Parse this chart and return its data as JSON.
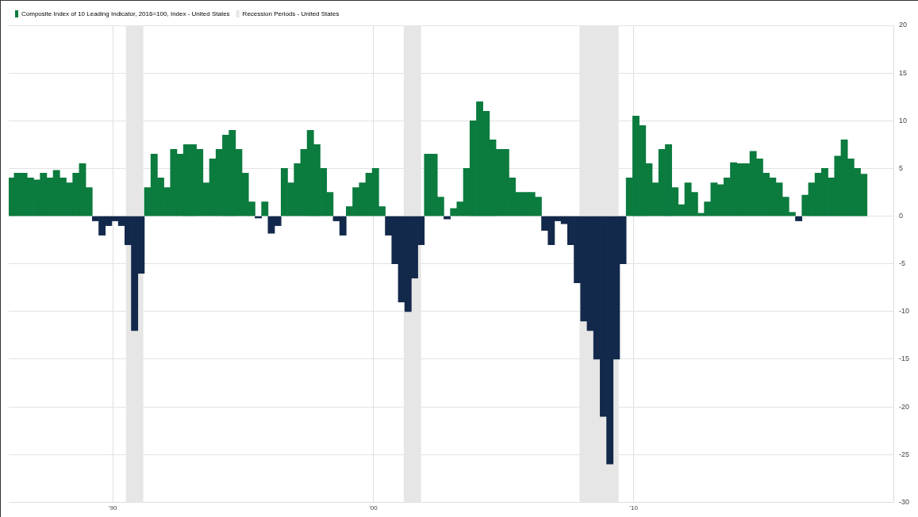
{
  "chart_data": {
    "type": "bar",
    "x": [
      "1986-02",
      "1986-05",
      "1986-08",
      "1986-11",
      "1987-02",
      "1987-05",
      "1987-08",
      "1987-11",
      "1988-02",
      "1988-05",
      "1988-08",
      "1988-11",
      "1989-02",
      "1989-05",
      "1989-08",
      "1989-11",
      "1990-02",
      "1990-05",
      "1990-08",
      "1990-11",
      "1991-02",
      "1991-05",
      "1991-08",
      "1991-11",
      "1992-02",
      "1992-05",
      "1992-08",
      "1992-11",
      "1993-02",
      "1993-05",
      "1993-08",
      "1993-11",
      "1994-02",
      "1994-05",
      "1994-08",
      "1994-11",
      "1995-02",
      "1995-05",
      "1995-08",
      "1995-11",
      "1996-02",
      "1996-05",
      "1996-08",
      "1996-11",
      "1997-02",
      "1997-05",
      "1997-08",
      "1997-11",
      "1998-02",
      "1998-05",
      "1998-08",
      "1998-11",
      "1999-02",
      "1999-05",
      "1999-08",
      "1999-11",
      "2000-02",
      "2000-05",
      "2000-08",
      "2000-11",
      "2001-02",
      "2001-05",
      "2001-08",
      "2001-11",
      "2002-02",
      "2002-05",
      "2002-08",
      "2002-11",
      "2003-02",
      "2003-05",
      "2003-08",
      "2003-11",
      "2004-02",
      "2004-05",
      "2004-08",
      "2004-11",
      "2005-02",
      "2005-05",
      "2005-08",
      "2005-11",
      "2006-02",
      "2006-05",
      "2006-08",
      "2006-11",
      "2007-02",
      "2007-05",
      "2007-08",
      "2007-11",
      "2008-02",
      "2008-05",
      "2008-08",
      "2008-11",
      "2009-02",
      "2009-05",
      "2009-08",
      "2009-11",
      "2010-02",
      "2010-05",
      "2010-08",
      "2010-11",
      "2011-02",
      "2011-05",
      "2011-08",
      "2011-11",
      "2012-02",
      "2012-05",
      "2012-08",
      "2012-11",
      "2013-02",
      "2013-05",
      "2013-08",
      "2013-11",
      "2014-02",
      "2014-05",
      "2014-08",
      "2014-11",
      "2015-02",
      "2015-05",
      "2015-08",
      "2015-11",
      "2016-02",
      "2016-05",
      "2016-08",
      "2016-11",
      "2017-02",
      "2017-05",
      "2017-08",
      "2017-11",
      "2018-02",
      "2018-05",
      "2018-08",
      "2018-11"
    ],
    "series": [
      {
        "name": "Composite Index of 10 Leading Indicator, 2016=100, Index - United States",
        "color": "#0b7b3e",
        "values": [
          4,
          4.5,
          4.5,
          4,
          3.8,
          4.5,
          4,
          4.8,
          4,
          3.5,
          4.5,
          5.5,
          3,
          -0.5,
          -2,
          -1,
          -0.5,
          -1,
          -3,
          -12,
          -6,
          3,
          6.5,
          4,
          3,
          7,
          6.5,
          7.5,
          7.5,
          7,
          3.5,
          6,
          7,
          8.5,
          9,
          7,
          4.5,
          1.5,
          -0.2,
          1.5,
          -1.8,
          -1,
          5,
          3.5,
          5.5,
          7,
          9,
          7.5,
          5,
          2.5,
          -0.5,
          -2,
          1,
          3,
          3.5,
          4.5,
          5,
          1,
          -2,
          -5,
          -9,
          -10,
          -6.5,
          -3,
          6.5,
          6.5,
          2,
          -0.3,
          0.8,
          1.5,
          5,
          10,
          12,
          11,
          8,
          7,
          7,
          4,
          2.5,
          2.5,
          2.5,
          2,
          -1.5,
          -3,
          -0.5,
          -0.8,
          -3,
          -7,
          -11,
          -12,
          -15,
          -21,
          -26,
          -15,
          -5,
          4,
          10.5,
          9.5,
          5.5,
          3.5,
          7,
          7.5,
          3,
          1.2,
          3.5,
          2.5,
          0.3,
          1.5,
          3.5,
          3.3,
          4,
          5.6,
          5.5,
          5.5,
          6.8,
          6,
          4.5,
          4,
          3.5,
          2,
          0.4,
          -0.5,
          2.2,
          3.5,
          4.5,
          5,
          4,
          6.3,
          8,
          6,
          5,
          4.4
        ],
        "colors": [
          "#0b7b3e",
          "#0b7b3e",
          "#0b7b3e",
          "#0b7b3e",
          "#0b7b3e",
          "#0b7b3e",
          "#0b7b3e",
          "#0b7b3e",
          "#0b7b3e",
          "#0b7b3e",
          "#0b7b3e",
          "#0b7b3e",
          "#0b7b3e",
          "#13294b",
          "#13294b",
          "#13294b",
          "#13294b",
          "#13294b",
          "#13294b",
          "#13294b",
          "#13294b",
          "#0b7b3e",
          "#0b7b3e",
          "#0b7b3e",
          "#0b7b3e",
          "#0b7b3e",
          "#0b7b3e",
          "#0b7b3e",
          "#0b7b3e",
          "#0b7b3e",
          "#0b7b3e",
          "#0b7b3e",
          "#0b7b3e",
          "#0b7b3e",
          "#0b7b3e",
          "#0b7b3e",
          "#0b7b3e",
          "#0b7b3e",
          "#13294b",
          "#0b7b3e",
          "#13294b",
          "#13294b",
          "#0b7b3e",
          "#0b7b3e",
          "#0b7b3e",
          "#0b7b3e",
          "#0b7b3e",
          "#0b7b3e",
          "#0b7b3e",
          "#0b7b3e",
          "#13294b",
          "#13294b",
          "#0b7b3e",
          "#0b7b3e",
          "#0b7b3e",
          "#0b7b3e",
          "#0b7b3e",
          "#0b7b3e",
          "#13294b",
          "#13294b",
          "#13294b",
          "#13294b",
          "#13294b",
          "#13294b",
          "#0b7b3e",
          "#0b7b3e",
          "#0b7b3e",
          "#13294b",
          "#0b7b3e",
          "#0b7b3e",
          "#0b7b3e",
          "#0b7b3e",
          "#0b7b3e",
          "#0b7b3e",
          "#0b7b3e",
          "#0b7b3e",
          "#0b7b3e",
          "#0b7b3e",
          "#0b7b3e",
          "#0b7b3e",
          "#0b7b3e",
          "#0b7b3e",
          "#13294b",
          "#13294b",
          "#13294b",
          "#13294b",
          "#13294b",
          "#13294b",
          "#13294b",
          "#13294b",
          "#13294b",
          "#13294b",
          "#13294b",
          "#13294b",
          "#13294b",
          "#0b7b3e",
          "#0b7b3e",
          "#0b7b3e",
          "#0b7b3e",
          "#0b7b3e",
          "#0b7b3e",
          "#0b7b3e",
          "#0b7b3e",
          "#0b7b3e",
          "#0b7b3e",
          "#0b7b3e",
          "#0b7b3e",
          "#0b7b3e",
          "#0b7b3e",
          "#0b7b3e",
          "#0b7b3e",
          "#0b7b3e",
          "#0b7b3e",
          "#0b7b3e",
          "#0b7b3e",
          "#0b7b3e",
          "#0b7b3e",
          "#0b7b3e",
          "#0b7b3e",
          "#0b7b3e",
          "#0b7b3e",
          "#13294b",
          "#0b7b3e",
          "#0b7b3e",
          "#0b7b3e",
          "#0b7b3e",
          "#0b7b3e",
          "#0b7b3e",
          "#0b7b3e",
          "#0b7b3e",
          "#0b7b3e",
          "#0b7b3e"
        ]
      }
    ],
    "bands": [
      {
        "axis": "x",
        "from": "1990-07",
        "to": "1991-03",
        "label": "Recession Periods - United States",
        "color": "#e6e6e6"
      },
      {
        "axis": "x",
        "from": "2001-03",
        "to": "2001-11",
        "color": "#e6e6e6"
      },
      {
        "axis": "x",
        "from": "2007-12",
        "to": "2009-06",
        "color": "#e6e6e6"
      }
    ],
    "xlim": [
      "1986-01",
      "2020-01"
    ],
    "xticks": [
      {
        "value": "1990-01",
        "label": "'90"
      },
      {
        "value": "2000-01",
        "label": "'00"
      },
      {
        "value": "2010-01",
        "label": "'10"
      }
    ],
    "ylim": [
      -30,
      20
    ],
    "yticks": [
      -30,
      -25,
      -20,
      -15,
      -10,
      -5,
      0,
      5,
      10,
      15,
      20
    ],
    "grid": true,
    "legend": "top left"
  }
}
